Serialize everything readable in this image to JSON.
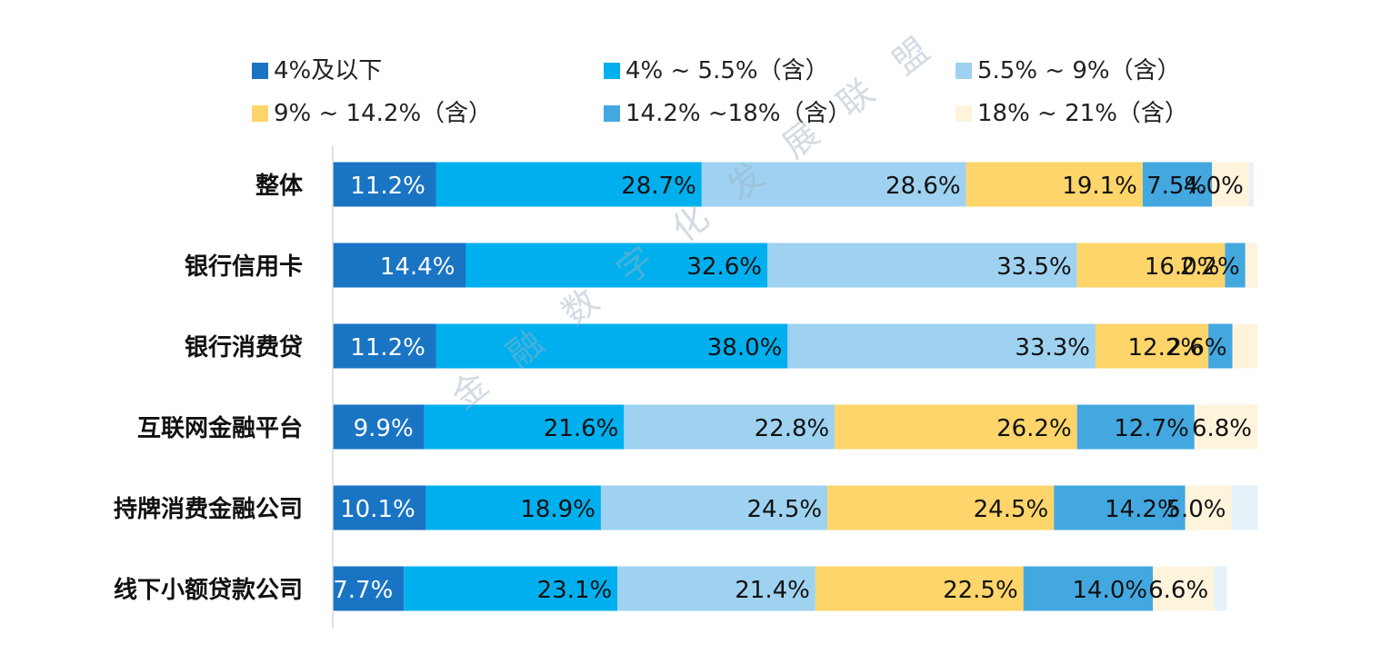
{
  "chart_data": {
    "type": "bar",
    "orientation": "horizontal",
    "stacked": true,
    "categories": [
      "整体",
      "银行信用卡",
      "银行消费贷",
      "互联网金融平台",
      "持牌消费金融公司",
      "线下小额贷款公司"
    ],
    "series": [
      {
        "name": "4%及以下",
        "color": "#1a74c4",
        "values": [
          11.2,
          14.4,
          11.2,
          9.9,
          10.1,
          7.7
        ],
        "labels": [
          "11.2%",
          "14.4%",
          "11.2%",
          "9.9%",
          "10.1%",
          "7.7%"
        ]
      },
      {
        "name": "4% ~ 5.5%（含）",
        "color": "#00b0ee",
        "values": [
          28.7,
          32.6,
          38.0,
          21.6,
          18.9,
          23.1
        ],
        "labels": [
          "28.7%",
          "32.6%",
          "38.0%",
          "21.6%",
          "18.9%",
          "23.1%"
        ]
      },
      {
        "name": "5.5% ~ 9%（含）",
        "color": "#9ed2f0",
        "values": [
          28.6,
          33.5,
          33.3,
          22.8,
          24.5,
          21.4
        ],
        "labels": [
          "28.6%",
          "33.5%",
          "33.3%",
          "22.8%",
          "24.5%",
          "21.4%"
        ]
      },
      {
        "name": "9% ~ 14.2%（含）",
        "color": "#fed56a",
        "values": [
          19.1,
          16.0,
          12.2,
          26.2,
          24.5,
          22.5
        ],
        "labels": [
          "19.1%",
          "16.0%",
          "12.2%",
          "26.2%",
          "24.5%",
          "22.5%"
        ]
      },
      {
        "name": "14.2% ~18%（含）",
        "color": "#43a8e0",
        "values": [
          7.5,
          2.2,
          2.6,
          12.7,
          14.2,
          14.0
        ],
        "labels": [
          "7.5%",
          "2.2%",
          "2.6%",
          "12.7%",
          "14.2%",
          "14.0%"
        ]
      },
      {
        "name": "18% ~ 21%（含）",
        "color": "#fef4dc",
        "values": [
          4.0,
          1.3,
          2.7,
          6.8,
          5.0,
          6.6
        ],
        "labels": [
          "4.0%",
          "",
          "",
          "6.8%",
          "5.0%",
          "6.6%"
        ]
      },
      {
        "name": "",
        "color": "#e6f1fa",
        "values": [
          0.5,
          0.0,
          0.0,
          0.0,
          2.8,
          1.4
        ],
        "labels": [
          "",
          "",
          "",
          "",
          "",
          ""
        ]
      }
    ],
    "legend": {
      "position": "top",
      "columns": 3
    },
    "xlim": [
      0,
      100
    ],
    "grid": false,
    "watermark": [
      "金",
      "融",
      "数",
      "字",
      "化",
      "发",
      "展",
      "联",
      "盟"
    ]
  }
}
